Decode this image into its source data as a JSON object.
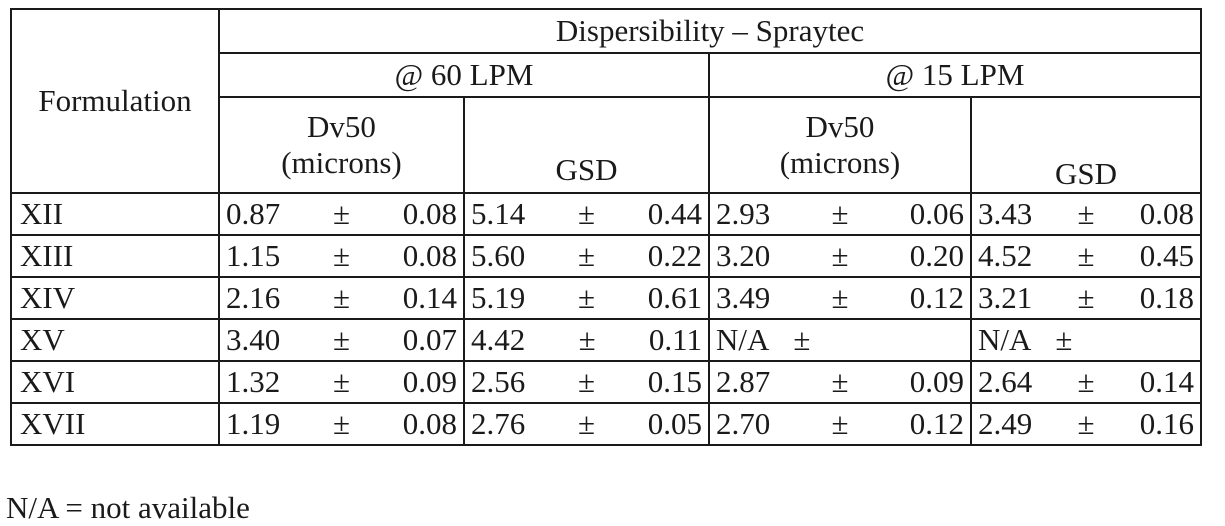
{
  "table": {
    "header_group": "Dispersibility – Spraytec",
    "row_header": "Formulation",
    "flow_60": "@ 60 LPM",
    "flow_15": "@ 15 LPM",
    "dv50_line1": "Dv50",
    "dv50_line2": "(microns)",
    "gsd": "GSD",
    "pm": "±",
    "rows": [
      {
        "name": "XII",
        "c": [
          [
            "0.87",
            "0.08"
          ],
          [
            "5.14",
            "0.44"
          ],
          [
            "2.93",
            "0.06"
          ],
          [
            "3.43",
            "0.08"
          ]
        ]
      },
      {
        "name": "XIII",
        "c": [
          [
            "1.15",
            "0.08"
          ],
          [
            "5.60",
            "0.22"
          ],
          [
            "3.20",
            "0.20"
          ],
          [
            "4.52",
            "0.45"
          ]
        ]
      },
      {
        "name": "XIV",
        "c": [
          [
            "2.16",
            "0.14"
          ],
          [
            "5.19",
            "0.61"
          ],
          [
            "3.49",
            "0.12"
          ],
          [
            "3.21",
            "0.18"
          ]
        ]
      },
      {
        "name": "XV",
        "c": [
          [
            "3.40",
            "0.07"
          ],
          [
            "4.42",
            "0.11"
          ],
          [
            "N/A",
            ""
          ],
          [
            "N/A",
            ""
          ]
        ]
      },
      {
        "name": "XVI",
        "c": [
          [
            "1.32",
            "0.09"
          ],
          [
            "2.56",
            "0.15"
          ],
          [
            "2.87",
            "0.09"
          ],
          [
            "2.64",
            "0.14"
          ]
        ]
      },
      {
        "name": "XVII",
        "c": [
          [
            "1.19",
            "0.08"
          ],
          [
            "2.76",
            "0.05"
          ],
          [
            "2.70",
            "0.12"
          ],
          [
            "2.49",
            "0.16"
          ]
        ]
      }
    ]
  },
  "footnote": "N/A = not available"
}
